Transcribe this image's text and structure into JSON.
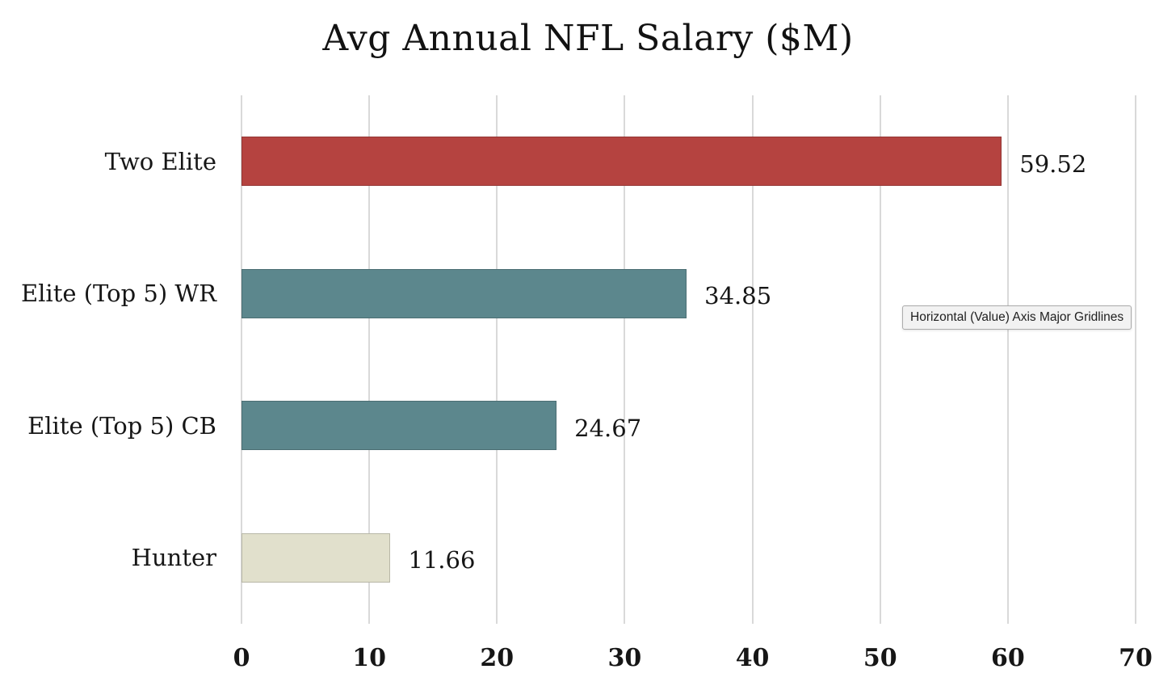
{
  "chart_data": {
    "type": "bar",
    "orientation": "horizontal",
    "title": "Avg Annual NFL Salary ($M)",
    "categories": [
      "Two Elite",
      "Elite (Top 5) WR",
      "Elite (Top 5) CB",
      "Hunter"
    ],
    "values": [
      59.52,
      34.85,
      24.67,
      11.66
    ],
    "value_labels": [
      "59.52",
      "34.85",
      "24.67",
      "11.66"
    ],
    "bar_colors": [
      "#b54340",
      "#5c878d",
      "#5c878d",
      "#e1e0cc"
    ],
    "xlabel": "",
    "ylabel": "",
    "xlim": [
      0,
      70
    ],
    "x_ticks": [
      0,
      10,
      20,
      30,
      40,
      50,
      60,
      70
    ],
    "grid": true,
    "gridline_color": "#d9d9d9",
    "legend": "none"
  },
  "tooltip": {
    "text": "Horizontal (Value) Axis Major Gridlines"
  }
}
